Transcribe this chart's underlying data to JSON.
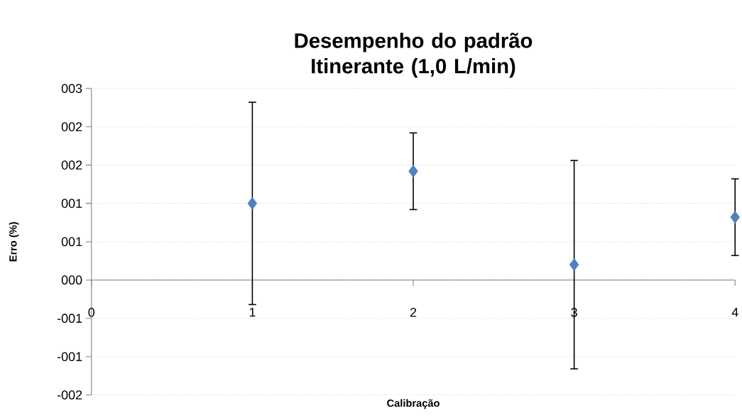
{
  "chart_data": {
    "type": "scatter",
    "title": "Desempenho do padrão Itinerante (1,0 L/min)",
    "xlabel": "Calibração",
    "ylabel": "Erro (%)",
    "x": [
      1,
      2,
      3,
      4
    ],
    "values": [
      1.0,
      1.42,
      0.2,
      0.82
    ],
    "errors": [
      1.32,
      0.5,
      1.36,
      0.5
    ],
    "color": "#4f81bd",
    "marker": "diamond",
    "xlim": [
      0,
      4
    ],
    "xticks": [
      0,
      1,
      2,
      3,
      4
    ],
    "ylim": [
      -1.5,
      2.5
    ],
    "yticks": [
      {
        "value": -1.5,
        "label": "-002"
      },
      {
        "value": -1.0,
        "label": "-001"
      },
      {
        "value": -0.5,
        "label": "-001"
      },
      {
        "value": 0,
        "label": "000"
      },
      {
        "value": 0.5,
        "label": "001"
      },
      {
        "value": 1.0,
        "label": "001"
      },
      {
        "value": 1.5,
        "label": "002"
      },
      {
        "value": 2.0,
        "label": "002"
      },
      {
        "value": 2.5,
        "label": "003"
      }
    ],
    "grid": "y"
  }
}
